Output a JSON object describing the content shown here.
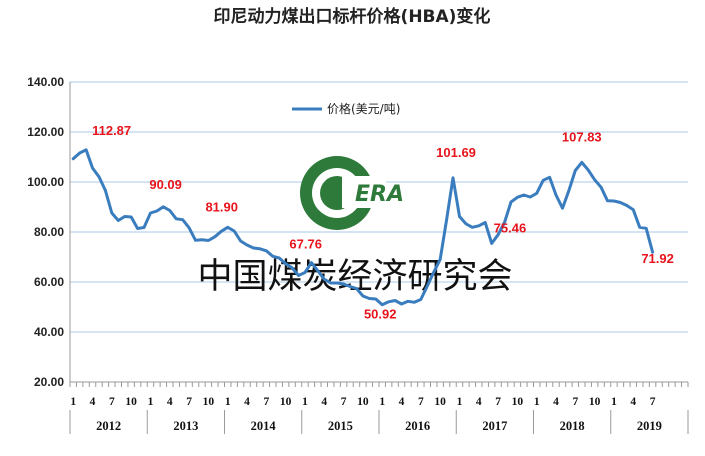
{
  "watermark": {
    "text": "中国煤炭经济研究会",
    "logo_text": "ERA",
    "logo_color": "#2d7a3a"
  },
  "chart_data": {
    "type": "line",
    "title": "印尼动力煤出口标杆价格(HBA)变化",
    "xlabel": "",
    "ylabel": "",
    "ylim": [
      20,
      140
    ],
    "yticks": [
      "20.00",
      "40.00",
      "60.00",
      "80.00",
      "100.00",
      "120.00",
      "140.00"
    ],
    "grid": true,
    "legend_position": "top-center",
    "line_color": "#3a7dbf",
    "annotation_color": "#e8141c",
    "years": [
      "2012",
      "2013",
      "2014",
      "2015",
      "2016",
      "2017",
      "2018",
      "2019"
    ],
    "month_tick_labels": [
      "1",
      "4",
      "7",
      "10"
    ],
    "series": [
      {
        "name": "价格(美元/吨)",
        "values": [
          109.3,
          111.6,
          112.87,
          105.6,
          102.1,
          96.6,
          87.6,
          84.6,
          86.2,
          86.0,
          81.4,
          81.8,
          87.6,
          88.4,
          90.09,
          88.6,
          85.3,
          84.9,
          81.7,
          76.7,
          76.9,
          76.6,
          78.1,
          80.3,
          81.9,
          80.4,
          76.4,
          74.8,
          73.6,
          73.3,
          72.5,
          70.3,
          69.6,
          67.3,
          65.7,
          62.6,
          63.8,
          67.76,
          64.5,
          61.1,
          59.6,
          59.6,
          59.2,
          58.2,
          57.4,
          54.4,
          53.4,
          53.2,
          50.92,
          52.1,
          52.6,
          51.2,
          52.3,
          51.9,
          53.0,
          58.4,
          63.9,
          69.1,
          84.9,
          101.69,
          86.2,
          83.3,
          81.9,
          82.5,
          83.8,
          75.46,
          78.9,
          83.8,
          92.0,
          93.9,
          94.8,
          94.0,
          95.5,
          100.7,
          101.9,
          94.8,
          89.5,
          96.6,
          104.6,
          107.83,
          104.8,
          100.9,
          97.9,
          92.5,
          92.4,
          91.8,
          90.6,
          88.9,
          81.9,
          81.5,
          71.92
        ]
      }
    ],
    "annotations": [
      {
        "index": 2,
        "text": "112.87"
      },
      {
        "index": 14,
        "text": "90.09"
      },
      {
        "index": 24,
        "text": "81.90"
      },
      {
        "index": 37,
        "text": "67.76"
      },
      {
        "index": 48,
        "text": "50.92"
      },
      {
        "index": 59,
        "text": "101.69"
      },
      {
        "index": 65,
        "text": "75.46"
      },
      {
        "index": 79,
        "text": "107.83"
      },
      {
        "index": 90,
        "text": "71.92"
      }
    ]
  }
}
